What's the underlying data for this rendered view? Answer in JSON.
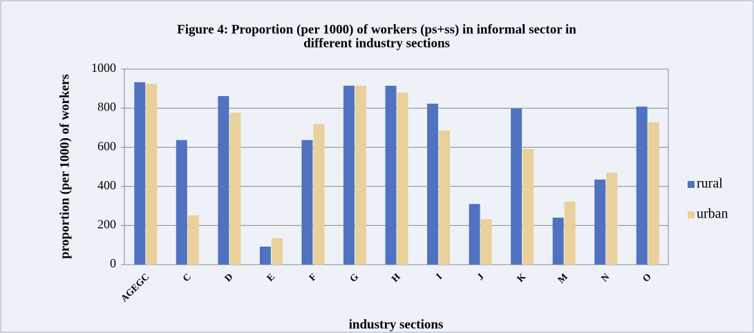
{
  "chart_data": {
    "type": "bar",
    "title": "Figure 4: Proportion (per 1000) of workers (ps+ss) in informal sector in different industry sections",
    "x_label": "industry sections",
    "y_label": "proportion (per 1000) of workers",
    "categories": [
      "AGEGC",
      "C",
      "D",
      "E",
      "F",
      "G",
      "H",
      "I",
      "J",
      "K",
      "M",
      "N",
      "O"
    ],
    "series": [
      {
        "name": "rural",
        "color": "#5072c0",
        "values": [
          933,
          637,
          862,
          92,
          637,
          915,
          915,
          823,
          310,
          798,
          240,
          435,
          808
        ]
      },
      {
        "name": "urban",
        "color": "#ead09a",
        "values": [
          925,
          252,
          777,
          135,
          720,
          915,
          880,
          685,
          233,
          590,
          322,
          470,
          728
        ]
      }
    ],
    "ylim": [
      0,
      1000
    ],
    "yticks": [
      0,
      200,
      400,
      600,
      800,
      1000
    ],
    "grid": true,
    "legend": "right"
  }
}
